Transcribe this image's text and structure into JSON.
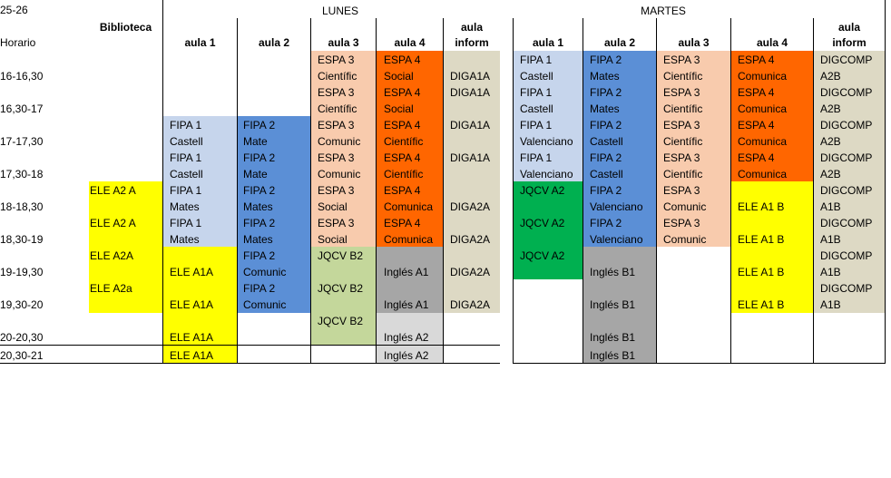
{
  "top_left": "25-26",
  "days": {
    "lunes": "LUNES",
    "martes": "MARTES"
  },
  "headers": {
    "biblioteca": "Biblioteca",
    "horario": "Horario",
    "aula1": "aula 1",
    "aula2": "aula 2",
    "aula3": "aula 3",
    "aula4": "aula 4",
    "aula_inform_1": "aula",
    "aula_inform_2": "inform"
  },
  "times": [
    "16-16,30",
    "16,30-17",
    "17-17,30",
    "17,30-18",
    "18-18,30",
    "18,30-19",
    "19-19,30",
    "19,30-20",
    "20-20,30",
    "20,30-21"
  ],
  "colors": {
    "light_blue": "#c6d5ec",
    "blue": "#5b8fd6",
    "peach": "#f8cbad",
    "orange": "#ff6600",
    "tan": "#ddd9c4",
    "yellow": "#ffff00",
    "green_light": "#c4d79b",
    "green": "#00b050",
    "gray": "#a6a6a6",
    "gray_light": "#d9d9d9"
  },
  "lunes": {
    "biblioteca": [
      "ELE A2 A",
      "ELE A2 A",
      "ELE A2A",
      "ELE A2a"
    ],
    "aula1": [
      "FIPA 1",
      "Castell",
      "FIPA 1",
      "Castell",
      "FIPA 1",
      "Mates",
      "FIPA 1",
      "Mates",
      "ELE A1A",
      "ELE A1A",
      "ELE A1A",
      "ELE A1A"
    ],
    "aula2": [
      "FIPA 2",
      "Mate",
      "FIPA 2",
      "Mate",
      "FIPA 2",
      "Mates",
      "FIPA 2",
      "Mates",
      "FIPA 2",
      "Comunic",
      "FIPA 2",
      "Comunic"
    ],
    "aula3": [
      "ESPA 3",
      "Científic",
      "ESPA 3",
      "Científic",
      "ESPA 3",
      "Comunic",
      "ESPA 3",
      "Comunic",
      "ESPA 3",
      "Social",
      "ESPA 3",
      "Social",
      "JQCV B2",
      "JQCV B2",
      "JQCV B2"
    ],
    "aula4": [
      "ESPA 4",
      "Social",
      "ESPA 4",
      "Social",
      "ESPA 4",
      "Científic",
      "ESPA 4",
      "Científic",
      "ESPA 4",
      "Comunica",
      "ESPA 4",
      "Comunica",
      "Inglés A1",
      "Inglés A1",
      "Inglés A2",
      "Inglés A2"
    ],
    "inform": [
      "DIGA1A",
      "DIGA1A",
      "DIGA1A",
      "DIGA1A",
      "DIGA2A",
      "DIGA2A",
      "DIGA2A",
      "DIGA2A"
    ]
  },
  "martes": {
    "aula1": [
      "FIPA 1",
      "Castell",
      "FIPA 1",
      "Castell",
      "FIPA 1",
      "Valenciano",
      "FIPA 1",
      "Valenciano",
      "JQCV A2",
      "JQCV A2",
      "JQCV A2"
    ],
    "aula2": [
      "FIPA 2",
      "Mates",
      "FIPA 2",
      "Mates",
      "FIPA 2",
      "Castell",
      "FIPA 2",
      "Castell",
      "FIPA 2",
      "Valenciano",
      "FIPA 2",
      "Valenciano",
      "Inglés B1",
      "Inglés B1",
      "Inglés B1",
      "Inglés B1"
    ],
    "aula3": [
      "ESPA 3",
      "Científic",
      "ESPA 3",
      "Científic",
      "ESPA 3",
      "Científic",
      "ESPA 3",
      "Científic",
      "ESPA 3",
      "Comunic",
      "ESPA 3",
      "Comunic"
    ],
    "aula4": [
      "ESPA 4",
      "Comunica",
      "ESPA 4",
      "Comunica",
      "ESPA 4",
      "Comunica",
      "ESPA 4",
      "Comunica",
      "ELE A1 B",
      "ELE A1 B",
      "ELE A1 B",
      "ELE A1 B"
    ],
    "inform": [
      "DIGCOMP",
      "A2B",
      "DIGCOMP",
      "A2B",
      "DIGCOMP",
      "A2B",
      "DIGCOMP",
      "A2B",
      "DIGCOMP",
      "A1B",
      "DIGCOMP",
      "A1B",
      "DIGCOMP",
      "A1B",
      "DIGCOMP",
      "A1B"
    ]
  }
}
